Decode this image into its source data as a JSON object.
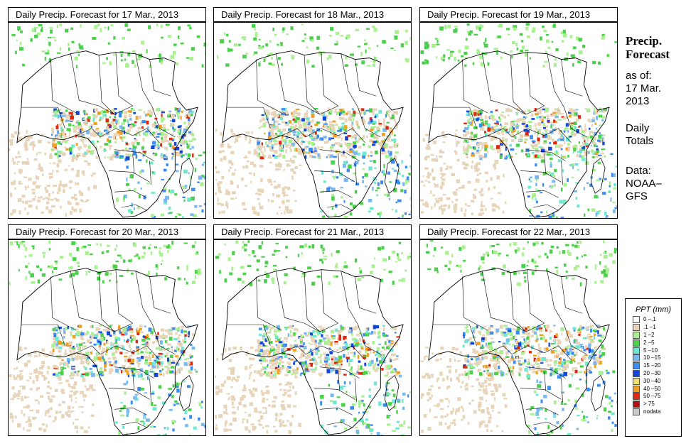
{
  "panels": [
    {
      "title": "Daily Precip. Forecast for  17 Mar., 2013"
    },
    {
      "title": "Daily Precip. Forecast for  18 Mar., 2013"
    },
    {
      "title": "Daily Precip. Forecast for  19 Mar., 2013"
    },
    {
      "title": "Daily Precip. Forecast for  20 Mar., 2013"
    },
    {
      "title": "Daily Precip. Forecast for  21 Mar., 2013"
    },
    {
      "title": "Daily Precip. Forecast for  22 Mar., 2013"
    }
  ],
  "side": {
    "title_line1": "Precip.",
    "title_line2": "Forecast",
    "asof_line1": "as of:",
    "asof_line2": "17 Mar.",
    "asof_line3": "2013",
    "totals_line1": "Daily",
    "totals_line2": "Totals",
    "data_line1": "Data:",
    "data_line2": "NOAA–",
    "data_line3": "GFS"
  },
  "legend": {
    "title": "PPT (mm)",
    "items": [
      {
        "label": "0 –.1",
        "color": "#ffffff"
      },
      {
        "label": ".1 –1",
        "color": "#e8d4b8"
      },
      {
        "label": "1 –2",
        "color": "#a8f090"
      },
      {
        "label": "2 –5",
        "color": "#4cd04c"
      },
      {
        "label": "5 –10",
        "color": "#6ee8d0"
      },
      {
        "label": "10 –15",
        "color": "#7ab8f0"
      },
      {
        "label": "15 –20",
        "color": "#3c8cf0"
      },
      {
        "label": "20 –30",
        "color": "#1446d8"
      },
      {
        "label": "30 –40",
        "color": "#f0e070"
      },
      {
        "label": "40 –50",
        "color": "#f0a020"
      },
      {
        "label": "50 –75",
        "color": "#e02810"
      },
      {
        "label": "> 75",
        "color": "#b01010"
      },
      {
        "label": "nodata",
        "color": "#c8c8c8"
      }
    ]
  }
}
